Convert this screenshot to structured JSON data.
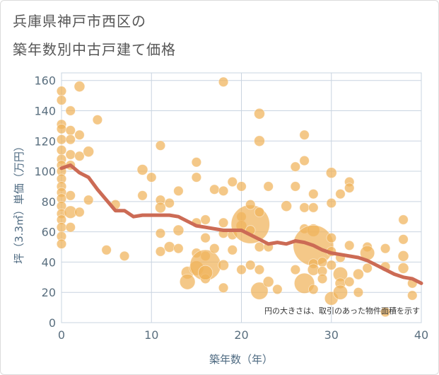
{
  "title_line1": "兵庫県神戸市西区の",
  "title_line2": "築年数別中古戸建て価格",
  "chart_data": {
    "type": "scatter",
    "xlabel": "築年数（年）",
    "ylabel": "坪（3.3㎡）単価（万円）",
    "xlim": [
      0,
      40
    ],
    "ylim": [
      0,
      165
    ],
    "x_ticks": [
      0,
      10,
      20,
      30,
      40
    ],
    "y_ticks": [
      0,
      20,
      40,
      60,
      80,
      100,
      120,
      140,
      160
    ],
    "note": "円の大きさは、取引のあった物件面積を示す",
    "colors": {
      "bubble": "#f0b35a",
      "line": "#cc6b55",
      "grid": "#c9d4e0"
    },
    "points": [
      {
        "x": 0,
        "y": 153,
        "s": 1
      },
      {
        "x": 0,
        "y": 147,
        "s": 1
      },
      {
        "x": 0,
        "y": 131,
        "s": 1
      },
      {
        "x": 0,
        "y": 128,
        "s": 1
      },
      {
        "x": 0,
        "y": 121,
        "s": 1
      },
      {
        "x": 0,
        "y": 114,
        "s": 1
      },
      {
        "x": 0,
        "y": 108,
        "s": 1
      },
      {
        "x": 0,
        "y": 104,
        "s": 1
      },
      {
        "x": 0,
        "y": 100,
        "s": 1
      },
      {
        "x": 0,
        "y": 95,
        "s": 1
      },
      {
        "x": 0,
        "y": 90,
        "s": 1
      },
      {
        "x": 0,
        "y": 86,
        "s": 1
      },
      {
        "x": 0,
        "y": 82,
        "s": 1
      },
      {
        "x": 0,
        "y": 77,
        "s": 1
      },
      {
        "x": 0,
        "y": 72,
        "s": 1
      },
      {
        "x": 0,
        "y": 68,
        "s": 1
      },
      {
        "x": 0,
        "y": 63,
        "s": 1
      },
      {
        "x": 0,
        "y": 57,
        "s": 1
      },
      {
        "x": 0,
        "y": 52,
        "s": 1
      },
      {
        "x": 1,
        "y": 140,
        "s": 1
      },
      {
        "x": 1,
        "y": 127,
        "s": 1
      },
      {
        "x": 1,
        "y": 121,
        "s": 1
      },
      {
        "x": 1,
        "y": 111,
        "s": 1
      },
      {
        "x": 1,
        "y": 104,
        "s": 1
      },
      {
        "x": 1,
        "y": 84,
        "s": 1
      },
      {
        "x": 1,
        "y": 73,
        "s": 1.3
      },
      {
        "x": 1,
        "y": 63,
        "s": 1
      },
      {
        "x": 2,
        "y": 156,
        "s": 1.1
      },
      {
        "x": 2,
        "y": 124,
        "s": 1
      },
      {
        "x": 2,
        "y": 110,
        "s": 1
      },
      {
        "x": 2,
        "y": 73,
        "s": 1
      },
      {
        "x": 3,
        "y": 113,
        "s": 1.1
      },
      {
        "x": 3,
        "y": 81,
        "s": 1
      },
      {
        "x": 4,
        "y": 134,
        "s": 1
      },
      {
        "x": 5,
        "y": 48,
        "s": 1
      },
      {
        "x": 6,
        "y": 78,
        "s": 1
      },
      {
        "x": 7,
        "y": 44,
        "s": 1
      },
      {
        "x": 9,
        "y": 101,
        "s": 1.1
      },
      {
        "x": 9,
        "y": 84,
        "s": 1
      },
      {
        "x": 10,
        "y": 96,
        "s": 1
      },
      {
        "x": 11,
        "y": 117,
        "s": 1
      },
      {
        "x": 11,
        "y": 81,
        "s": 1
      },
      {
        "x": 11,
        "y": 76,
        "s": 1.1
      },
      {
        "x": 11,
        "y": 59,
        "s": 1
      },
      {
        "x": 11,
        "y": 47,
        "s": 1
      },
      {
        "x": 12,
        "y": 79,
        "s": 1
      },
      {
        "x": 12,
        "y": 50,
        "s": 1.1
      },
      {
        "x": 13,
        "y": 87,
        "s": 1
      },
      {
        "x": 13,
        "y": 61,
        "s": 1.1
      },
      {
        "x": 13,
        "y": 49,
        "s": 1
      },
      {
        "x": 14,
        "y": 33,
        "s": 1.3
      },
      {
        "x": 14,
        "y": 27,
        "s": 1.6
      },
      {
        "x": 15,
        "y": 106,
        "s": 1
      },
      {
        "x": 15,
        "y": 96,
        "s": 1
      },
      {
        "x": 15,
        "y": 66,
        "s": 1
      },
      {
        "x": 15,
        "y": 46,
        "s": 1
      },
      {
        "x": 15,
        "y": 36,
        "s": 1.5
      },
      {
        "x": 16,
        "y": 68,
        "s": 1
      },
      {
        "x": 16,
        "y": 56,
        "s": 1
      },
      {
        "x": 16,
        "y": 44,
        "s": 1
      },
      {
        "x": 16,
        "y": 38,
        "s": 3.2
      },
      {
        "x": 16,
        "y": 29,
        "s": 1
      },
      {
        "x": 16,
        "y": 33,
        "s": 1.5
      },
      {
        "x": 17,
        "y": 88,
        "s": 1
      },
      {
        "x": 17,
        "y": 49,
        "s": 1
      },
      {
        "x": 18,
        "y": 159,
        "s": 1
      },
      {
        "x": 18,
        "y": 87,
        "s": 1
      },
      {
        "x": 18,
        "y": 66,
        "s": 1
      },
      {
        "x": 18,
        "y": 59,
        "s": 1
      },
      {
        "x": 18,
        "y": 38,
        "s": 1.1
      },
      {
        "x": 18,
        "y": 23,
        "s": 1
      },
      {
        "x": 19,
        "y": 93,
        "s": 1
      },
      {
        "x": 19,
        "y": 58,
        "s": 1
      },
      {
        "x": 19,
        "y": 48,
        "s": 1
      },
      {
        "x": 20,
        "y": 90,
        "s": 1
      },
      {
        "x": 20,
        "y": 70,
        "s": 1
      },
      {
        "x": 20,
        "y": 64,
        "s": 1.1
      },
      {
        "x": 20,
        "y": 35,
        "s": 1
      },
      {
        "x": 21,
        "y": 65,
        "s": 4
      },
      {
        "x": 21,
        "y": 78,
        "s": 1
      },
      {
        "x": 21,
        "y": 61,
        "s": 1
      },
      {
        "x": 21,
        "y": 38,
        "s": 1
      },
      {
        "x": 22,
        "y": 138,
        "s": 1.1
      },
      {
        "x": 22,
        "y": 120,
        "s": 1.1
      },
      {
        "x": 22,
        "y": 73,
        "s": 1
      },
      {
        "x": 22,
        "y": 50,
        "s": 1
      },
      {
        "x": 22,
        "y": 35,
        "s": 1
      },
      {
        "x": 22,
        "y": 21,
        "s": 1.8
      },
      {
        "x": 23,
        "y": 90,
        "s": 1
      },
      {
        "x": 23,
        "y": 50,
        "s": 1
      },
      {
        "x": 23,
        "y": 27,
        "s": 1.1
      },
      {
        "x": 24,
        "y": 22,
        "s": 1
      },
      {
        "x": 25,
        "y": 77,
        "s": 1.1
      },
      {
        "x": 26,
        "y": 103,
        "s": 1
      },
      {
        "x": 26,
        "y": 90,
        "s": 1
      },
      {
        "x": 26,
        "y": 35,
        "s": 1
      },
      {
        "x": 27,
        "y": 124,
        "s": 1
      },
      {
        "x": 27,
        "y": 107,
        "s": 1
      },
      {
        "x": 27,
        "y": 76,
        "s": 1
      },
      {
        "x": 27,
        "y": 62,
        "s": 1
      },
      {
        "x": 27,
        "y": 26,
        "s": 2.1
      },
      {
        "x": 28,
        "y": 85,
        "s": 1
      },
      {
        "x": 28,
        "y": 76,
        "s": 1
      },
      {
        "x": 28,
        "y": 61,
        "s": 1.3
      },
      {
        "x": 28,
        "y": 51,
        "s": 4.2
      },
      {
        "x": 28,
        "y": 39,
        "s": 1
      },
      {
        "x": 28,
        "y": 35,
        "s": 1.2
      },
      {
        "x": 28,
        "y": 22,
        "s": 1
      },
      {
        "x": 29,
        "y": 40,
        "s": 1
      },
      {
        "x": 29,
        "y": 34,
        "s": 1
      },
      {
        "x": 29,
        "y": 29,
        "s": 1
      },
      {
        "x": 30,
        "y": 99,
        "s": 1.1
      },
      {
        "x": 30,
        "y": 79,
        "s": 1
      },
      {
        "x": 30,
        "y": 56,
        "s": 1
      },
      {
        "x": 30,
        "y": 47,
        "s": 1
      },
      {
        "x": 30,
        "y": 38,
        "s": 1
      },
      {
        "x": 30,
        "y": 16,
        "s": 1.4
      },
      {
        "x": 31,
        "y": 85,
        "s": 1
      },
      {
        "x": 31,
        "y": 43,
        "s": 1
      },
      {
        "x": 31,
        "y": 32,
        "s": 1.5
      },
      {
        "x": 31,
        "y": 26,
        "s": 1.1
      },
      {
        "x": 31,
        "y": 20,
        "s": 1.5
      },
      {
        "x": 32,
        "y": 93,
        "s": 1
      },
      {
        "x": 32,
        "y": 89,
        "s": 1
      },
      {
        "x": 32,
        "y": 51,
        "s": 1
      },
      {
        "x": 32,
        "y": 27,
        "s": 1
      },
      {
        "x": 33,
        "y": 20,
        "s": 1
      },
      {
        "x": 33,
        "y": 32,
        "s": 1.1
      },
      {
        "x": 34,
        "y": 50,
        "s": 1
      },
      {
        "x": 34,
        "y": 46,
        "s": 1.5
      },
      {
        "x": 34,
        "y": 36,
        "s": 1
      },
      {
        "x": 36,
        "y": 49,
        "s": 1
      },
      {
        "x": 36,
        "y": 37,
        "s": 1
      },
      {
        "x": 36,
        "y": 7,
        "s": 1
      },
      {
        "x": 38,
        "y": 68,
        "s": 1
      },
      {
        "x": 38,
        "y": 55,
        "s": 1
      },
      {
        "x": 38,
        "y": 44,
        "s": 1.1
      },
      {
        "x": 38,
        "y": 36,
        "s": 1.1
      },
      {
        "x": 39,
        "y": 26,
        "s": 1
      },
      {
        "x": 39,
        "y": 18,
        "s": 1
      }
    ],
    "trend": {
      "x": [
        0,
        1,
        2,
        3,
        4,
        5,
        6,
        7,
        8,
        9,
        10,
        11,
        12,
        13,
        14,
        15,
        16,
        17,
        18,
        19,
        20,
        21,
        22,
        23,
        24,
        25,
        26,
        27,
        28,
        29,
        30,
        31,
        32,
        33,
        34,
        35,
        36,
        37,
        38,
        39,
        40
      ],
      "y": [
        102,
        104,
        99,
        96,
        88,
        81,
        74,
        74,
        70,
        71,
        71,
        71,
        71,
        70,
        67,
        64,
        63,
        62,
        61,
        61,
        61,
        58,
        55,
        52,
        53,
        52,
        54,
        53,
        51,
        48,
        46,
        45,
        44,
        43,
        41,
        38,
        35,
        32,
        30,
        29,
        26
      ]
    }
  }
}
